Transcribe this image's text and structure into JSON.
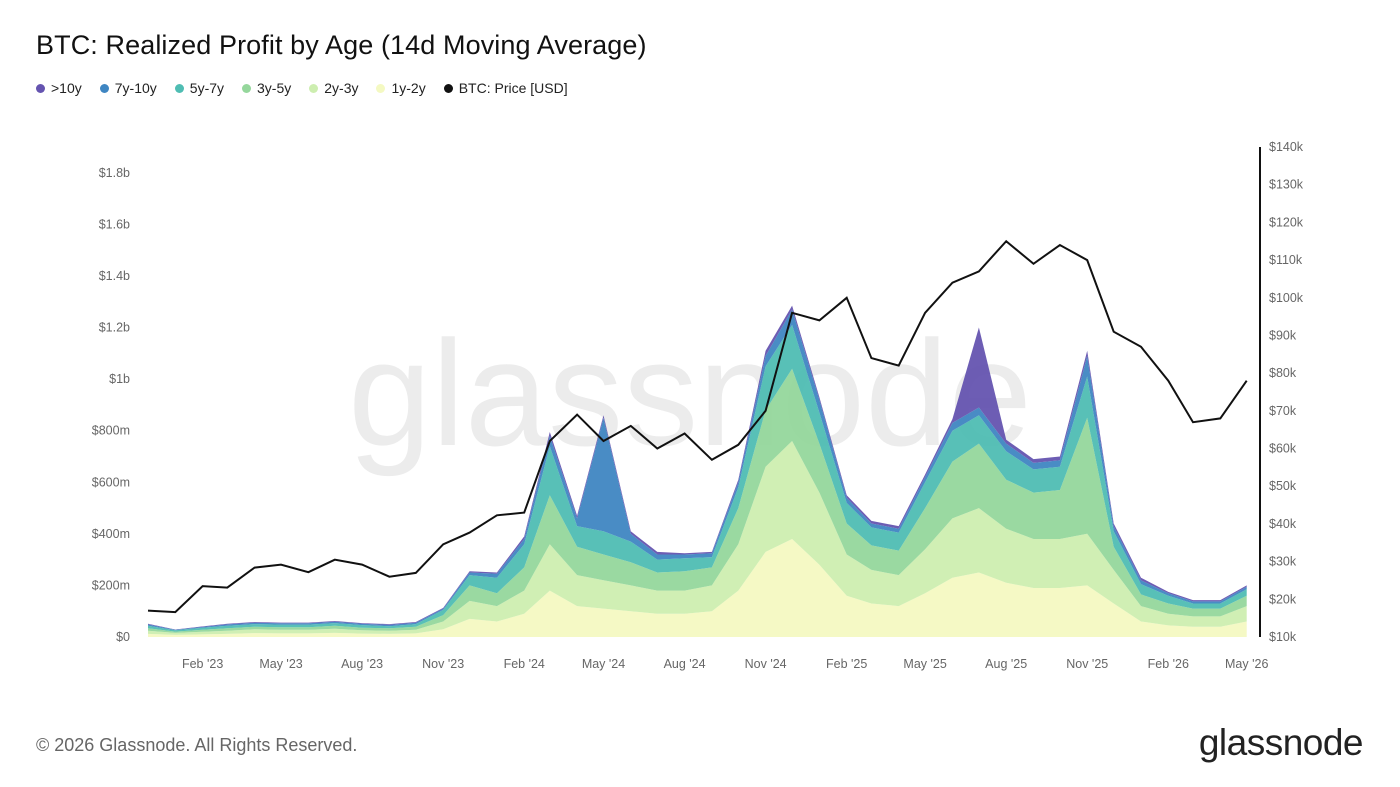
{
  "title": "BTC: Realized Profit by Age (14d Moving Average)",
  "legend": [
    {
      "label": ">10y",
      "color": "#6554b0"
    },
    {
      "label": "7y-10y",
      "color": "#3f86c2"
    },
    {
      "label": "5y-7y",
      "color": "#4fbdb3"
    },
    {
      "label": "3y-5y",
      "color": "#95d79c"
    },
    {
      "label": "2y-3y",
      "color": "#cdeeb0"
    },
    {
      "label": "1y-2y",
      "color": "#f4f9c2"
    },
    {
      "label": "BTC: Price [USD]",
      "color": "#111111"
    }
  ],
  "footer": "© 2026 Glassnode. All Rights Reserved.",
  "brand": "glassnode",
  "watermark": "glassnode",
  "chart_data": {
    "type": "area",
    "x_range": [
      "2022-12-01",
      "2026-05-07"
    ],
    "x_ticks": [
      "Feb '23",
      "May '23",
      "Aug '23",
      "Nov '23",
      "Feb '24",
      "May '24",
      "Aug '24",
      "Nov '24",
      "Feb '25",
      "May '25",
      "Aug '25",
      "Nov '25",
      "Feb '26",
      "May '26"
    ],
    "y_left": {
      "ticks": [
        "$0",
        "$200m",
        "$400m",
        "$600m",
        "$800m",
        "$1b",
        "$1.2b",
        "$1.4b",
        "$1.6b",
        "$1.8b"
      ],
      "range": [
        0,
        1900
      ]
    },
    "y_right": {
      "ticks": [
        "$10k",
        "$20k",
        "$30k",
        "$40k",
        "$50k",
        "$60k",
        "$70k",
        "$80k",
        "$90k",
        "$100k",
        "$110k",
        "$120k",
        "$130k",
        "$140k"
      ],
      "range": [
        10000,
        140000
      ]
    },
    "realized_profit_unit": "USD millions",
    "dates": [
      "2022-12-01",
      "2023-01-01",
      "2023-02-01",
      "2023-03-01",
      "2023-04-01",
      "2023-05-01",
      "2023-06-01",
      "2023-07-01",
      "2023-08-01",
      "2023-09-01",
      "2023-10-01",
      "2023-11-01",
      "2023-12-01",
      "2024-01-01",
      "2024-02-01",
      "2024-03-01",
      "2024-04-01",
      "2024-05-01",
      "2024-06-01",
      "2024-07-01",
      "2024-08-01",
      "2024-09-01",
      "2024-10-01",
      "2024-11-01",
      "2024-12-01",
      "2025-01-01",
      "2025-02-01",
      "2025-03-01",
      "2025-04-01",
      "2025-05-01",
      "2025-06-01",
      "2025-07-01",
      "2025-08-01",
      "2025-09-01",
      "2025-10-01",
      "2025-11-01",
      "2025-12-01",
      "2026-01-01",
      "2026-02-01",
      "2026-03-01",
      "2026-04-01",
      "2026-05-01"
    ],
    "series": [
      {
        "name": "1y-2y",
        "values": [
          12,
          8,
          10,
          12,
          15,
          14,
          14,
          16,
          13,
          12,
          14,
          30,
          70,
          60,
          90,
          180,
          120,
          110,
          100,
          90,
          90,
          100,
          180,
          330,
          380,
          280,
          160,
          130,
          120,
          170,
          230,
          250,
          210,
          190,
          190,
          200,
          130,
          60,
          45,
          40,
          40,
          60
        ]
      },
      {
        "name": "2y-3y",
        "values": [
          12,
          8,
          10,
          12,
          15,
          14,
          14,
          16,
          13,
          12,
          14,
          30,
          70,
          60,
          90,
          180,
          120,
          110,
          100,
          90,
          90,
          100,
          180,
          330,
          380,
          280,
          160,
          130,
          120,
          170,
          230,
          250,
          210,
          190,
          190,
          200,
          130,
          60,
          45,
          40,
          40,
          60
        ]
      },
      {
        "name": "3y-5y",
        "values": [
          10,
          5,
          8,
          10,
          10,
          10,
          10,
          12,
          10,
          10,
          12,
          25,
          60,
          50,
          90,
          190,
          110,
          100,
          90,
          70,
          75,
          70,
          140,
          220,
          280,
          190,
          120,
          95,
          95,
          160,
          220,
          250,
          190,
          180,
          190,
          450,
          90,
          45,
          40,
          30,
          30,
          40
        ]
      },
      {
        "name": "5y-7y",
        "values": [
          10,
          5,
          8,
          10,
          10,
          10,
          10,
          10,
          10,
          8,
          10,
          20,
          40,
          60,
          90,
          190,
          80,
          90,
          80,
          50,
          50,
          40,
          80,
          170,
          170,
          120,
          80,
          70,
          70,
          100,
          120,
          110,
          110,
          90,
          90,
          160,
          60,
          40,
          30,
          20,
          20,
          25
        ]
      },
      {
        "name": "7y-10y",
        "values": [
          5,
          2,
          3,
          5,
          5,
          5,
          5,
          5,
          5,
          5,
          5,
          5,
          10,
          15,
          20,
          40,
          30,
          440,
          30,
          20,
          15,
          15,
          20,
          40,
          60,
          50,
          20,
          15,
          15,
          20,
          30,
          30,
          30,
          25,
          25,
          80,
          20,
          15,
          10,
          8,
          8,
          10
        ]
      },
      {
        "name": ">10y",
        "values": [
          2,
          1,
          2,
          2,
          3,
          3,
          3,
          3,
          3,
          3,
          3,
          3,
          5,
          5,
          10,
          15,
          10,
          10,
          10,
          10,
          5,
          5,
          10,
          20,
          15,
          10,
          10,
          10,
          10,
          10,
          15,
          310,
          15,
          15,
          15,
          20,
          10,
          10,
          5,
          5,
          5,
          5
        ]
      }
    ],
    "btc_price": [
      17000,
      16600,
      23500,
      23100,
      28400,
      29200,
      27200,
      30500,
      29200,
      26000,
      27000,
      34600,
      37700,
      42300,
      43000,
      62000,
      69000,
      62000,
      66000,
      60000,
      64000,
      57000,
      61000,
      70000,
      96000,
      94000,
      100000,
      84000,
      82000,
      96000,
      104000,
      107000,
      115000,
      109000,
      114000,
      110000,
      91000,
      87000,
      78000,
      67000,
      68000,
      78000
    ]
  }
}
